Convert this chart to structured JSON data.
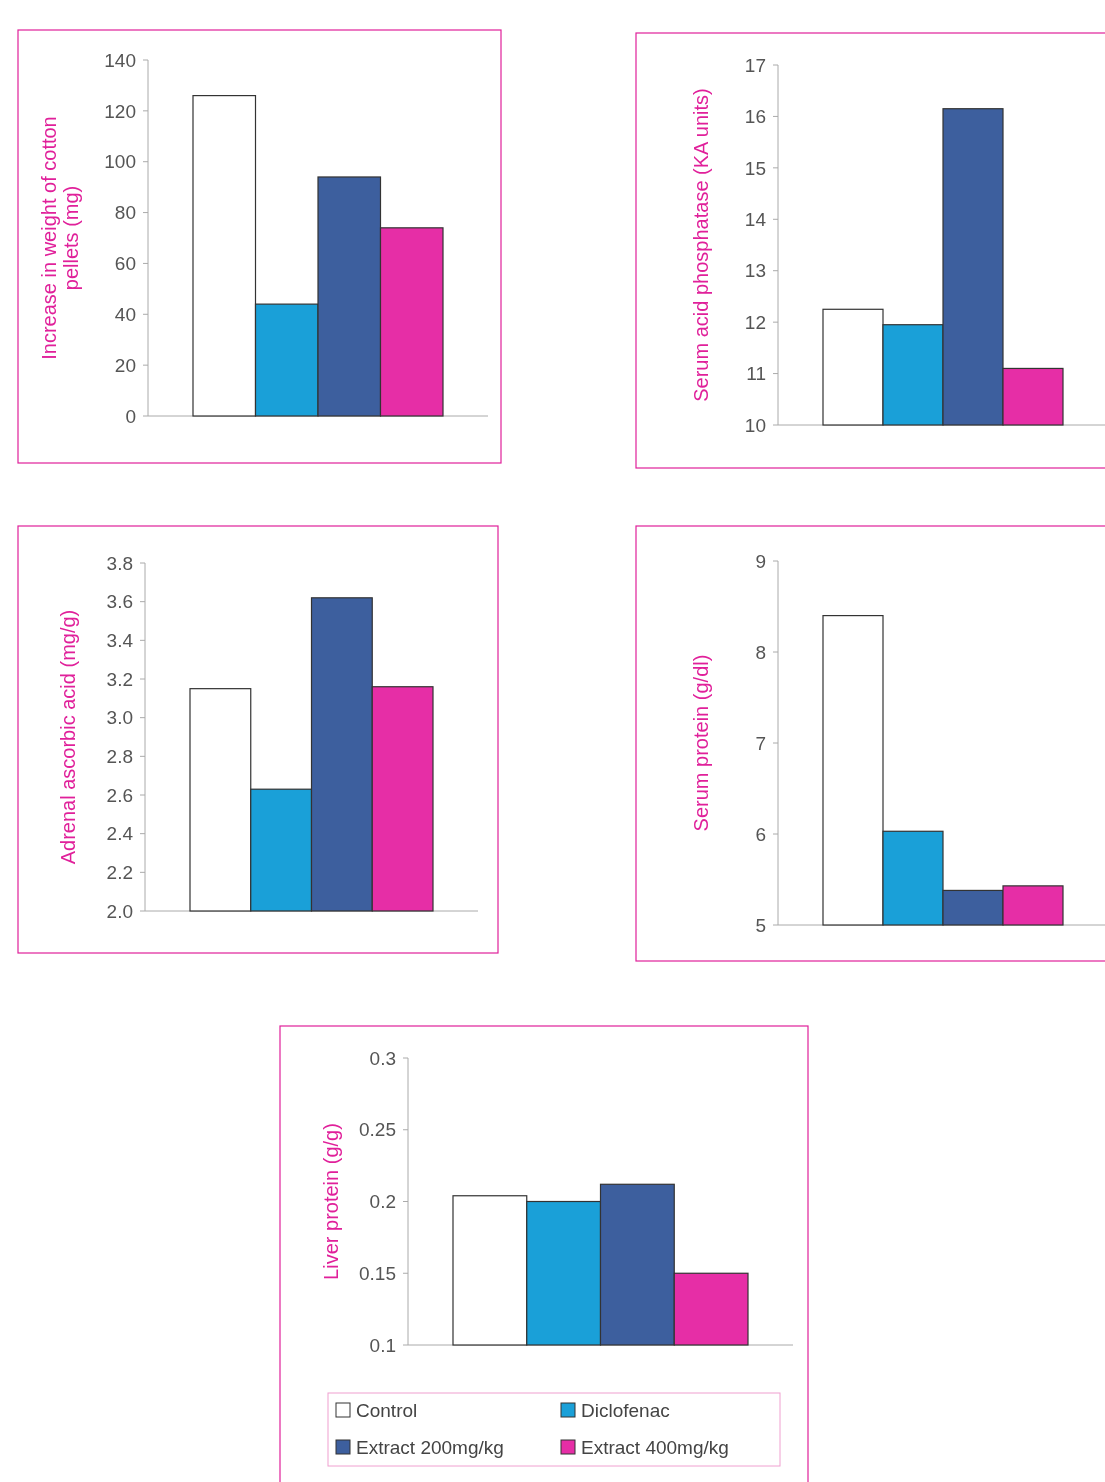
{
  "chart_data": [
    {
      "type": "bar",
      "ylabel": "Increase in weight of cotton pellets (mg)",
      "categories": [
        null
      ],
      "ylim": [
        0,
        140
      ],
      "yticks": [
        0,
        20,
        40,
        60,
        80,
        100,
        120,
        140
      ],
      "series": [
        {
          "color": "#ffffff",
          "values": [
            126
          ]
        },
        {
          "color": "#1aa0d8",
          "values": [
            44
          ]
        },
        {
          "color": "#3d5f9e",
          "values": [
            94
          ]
        },
        {
          "color": "#e62ea6",
          "values": [
            74
          ]
        }
      ]
    },
    {
      "type": "bar",
      "ylabel": "Serum acid phosphatase (KA units)",
      "categories": [
        null
      ],
      "ylim": [
        10,
        17
      ],
      "yticks": [
        10,
        11,
        12,
        13,
        14,
        15,
        16,
        17
      ],
      "series": [
        {
          "color": "#ffffff",
          "values": [
            12.25
          ]
        },
        {
          "color": "#1aa0d8",
          "values": [
            11.95
          ]
        },
        {
          "color": "#3d5f9e",
          "values": [
            16.15
          ]
        },
        {
          "color": "#e62ea6",
          "values": [
            11.1
          ]
        }
      ]
    },
    {
      "type": "bar",
      "ylabel": "Adrenal ascorbic acid (mg/g)",
      "categories": [
        null
      ],
      "ylim": [
        2,
        3.8
      ],
      "yticks": [
        {
          "value": 2,
          "label": "2.0"
        },
        2.2,
        2.4,
        2.6,
        2.8,
        {
          "value": 3,
          "label": "3.0"
        },
        3.2,
        3.4,
        3.6,
        3.8
      ],
      "series": [
        {
          "color": "#ffffff",
          "values": [
            3.15
          ]
        },
        {
          "color": "#1aa0d8",
          "values": [
            2.63
          ]
        },
        {
          "color": "#3d5f9e",
          "values": [
            3.62
          ]
        },
        {
          "color": "#e62ea6",
          "values": [
            3.16
          ]
        }
      ]
    },
    {
      "type": "bar",
      "ylabel": "Serum protein (g/dl)",
      "categories": [
        null
      ],
      "ylim": [
        5,
        9
      ],
      "yticks": [
        5,
        6,
        7,
        8,
        9
      ],
      "series": [
        {
          "color": "#ffffff",
          "values": [
            8.4
          ]
        },
        {
          "color": "#1aa0d8",
          "values": [
            6.03
          ]
        },
        {
          "color": "#3d5f9e",
          "values": [
            5.38
          ]
        },
        {
          "color": "#e62ea6",
          "values": [
            5.43
          ]
        }
      ]
    },
    {
      "type": "bar",
      "ylabel": "Liver protein (g/g)",
      "categories": [
        null
      ],
      "ylim": [
        0.1,
        0.3
      ],
      "yticks": [
        0.1,
        0.15,
        0.2,
        0.25,
        0.3
      ],
      "legend": "bottom",
      "series": [
        {
          "name": "Control",
          "color": "#ffffff",
          "values": [
            0.204
          ]
        },
        {
          "name": "Diclofenac",
          "color": "#1aa0d8",
          "values": [
            0.2
          ]
        },
        {
          "name": "Extract 200mg/kg",
          "color": "#3d5f9e",
          "values": [
            0.212
          ]
        },
        {
          "name": "Extract 400mg/kg",
          "color": "#e62ea6",
          "values": [
            0.15
          ]
        }
      ]
    }
  ]
}
